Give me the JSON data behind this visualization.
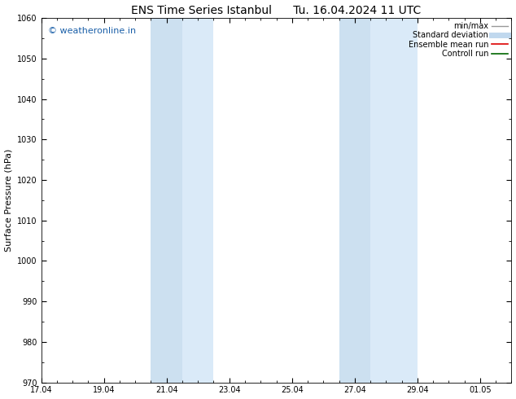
{
  "title": "ENS Time Series Istanbul      Tu. 16.04.2024 11 UTC",
  "ylabel": "Surface Pressure (hPa)",
  "ylim": [
    970,
    1060
  ],
  "yticks": [
    970,
    980,
    990,
    1000,
    1010,
    1020,
    1030,
    1040,
    1050,
    1060
  ],
  "xlim": [
    0,
    15
  ],
  "xtick_labels": [
    "17.04",
    "19.04",
    "21.04",
    "23.04",
    "25.04",
    "27.04",
    "29.04",
    "01.05"
  ],
  "xtick_positions": [
    0,
    2,
    4,
    6,
    8,
    10,
    12,
    14
  ],
  "shaded_regions": [
    {
      "start": 3.5,
      "end": 4.5,
      "color": "#cce0f0"
    },
    {
      "start": 4.5,
      "end": 5.5,
      "color": "#daeaf8"
    },
    {
      "start": 9.5,
      "end": 10.5,
      "color": "#cce0f0"
    },
    {
      "start": 10.5,
      "end": 12.0,
      "color": "#daeaf8"
    }
  ],
  "watermark_text": "© weatheronline.in",
  "watermark_color": "#1a5fa8",
  "watermark_fontsize": 8,
  "bg_color": "#ffffff",
  "legend_items": [
    {
      "label": "min/max",
      "color": "#999999",
      "lw": 1.0
    },
    {
      "label": "Standard deviation",
      "color": "#c0d8ee",
      "lw": 5
    },
    {
      "label": "Ensemble mean run",
      "color": "#dd0000",
      "lw": 1.2
    },
    {
      "label": "Controll run",
      "color": "#006600",
      "lw": 1.2
    }
  ],
  "title_fontsize": 10,
  "axis_label_fontsize": 8,
  "tick_fontsize": 7
}
